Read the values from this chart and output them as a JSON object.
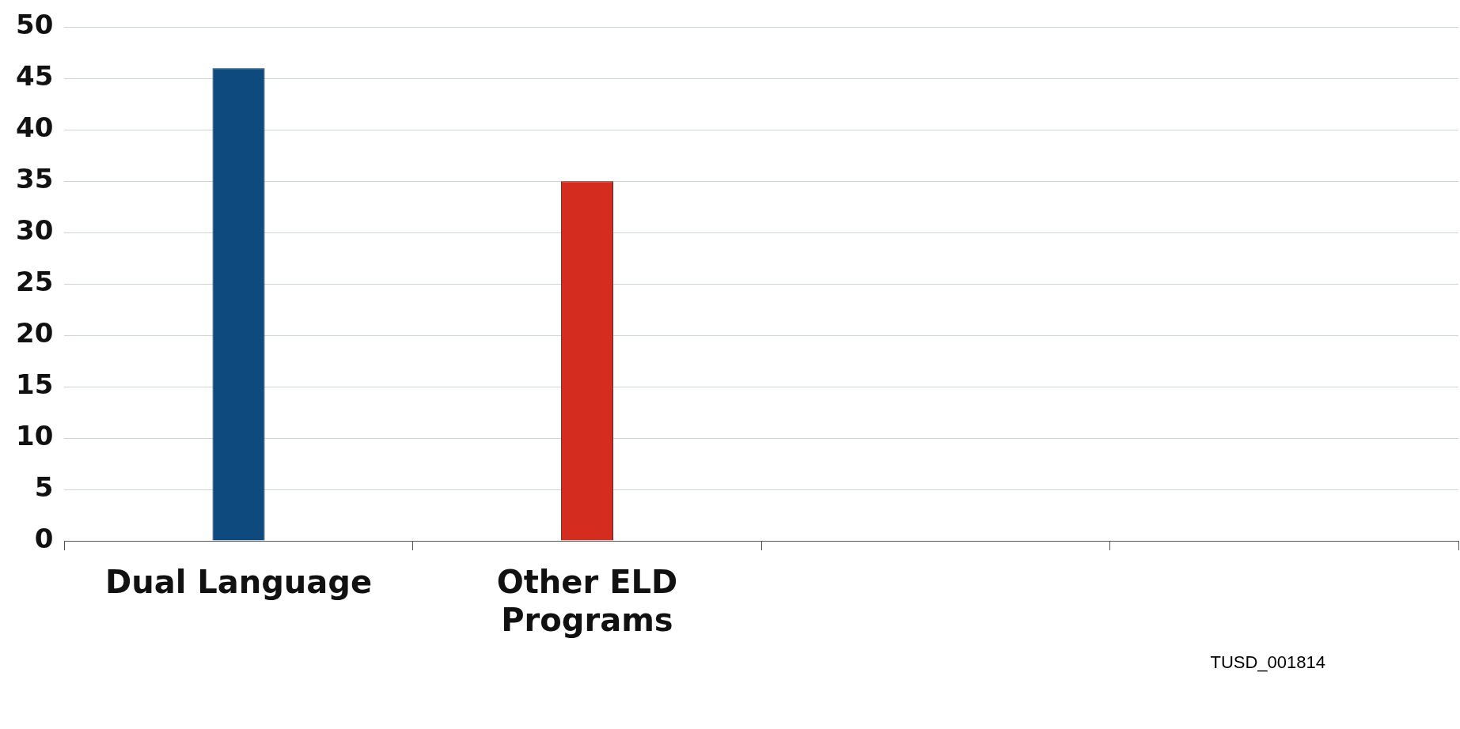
{
  "chart_data": {
    "type": "bar",
    "categories": [
      "Dual Language",
      "Other ELD Programs",
      null,
      null
    ],
    "values": [
      46,
      35,
      null,
      null
    ],
    "colors": [
      "#0e4a7e",
      "#d42d1f",
      "#d42d1f",
      "#d42d1f"
    ],
    "ylim": [
      0,
      50
    ],
    "yticks": [
      0,
      5,
      10,
      15,
      20,
      25,
      30,
      35,
      40,
      45,
      50
    ],
    "grid": "y",
    "annotations": [
      "TUSD_001814"
    ]
  }
}
